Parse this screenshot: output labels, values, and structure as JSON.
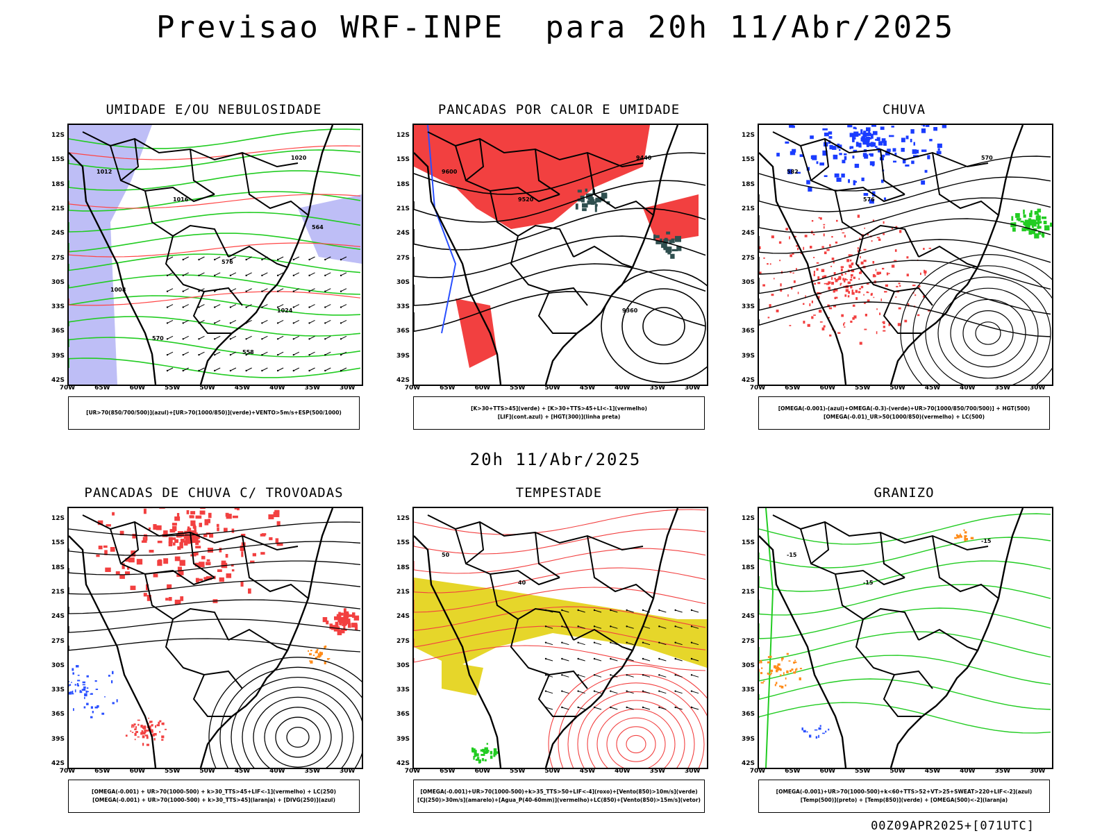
{
  "header": {
    "title": "Previsao WRF-INPE  para 20h 11/Abr/2025",
    "subtitle": "20h 11/Abr/2025",
    "run_info": "00Z09APR2025+[071UTC]"
  },
  "axes": {
    "lat_labels": [
      "12S",
      "15S",
      "18S",
      "21S",
      "24S",
      "27S",
      "30S",
      "33S",
      "36S",
      "39S",
      "42S"
    ],
    "lon_labels": [
      "70W",
      "65W",
      "60W",
      "55W",
      "50W",
      "45W",
      "40W",
      "35W",
      "30W"
    ]
  },
  "panels": [
    {
      "id": "umidade",
      "title": "UMIDADE E/OU NEBULOSIDADE",
      "legend": [
        "[UR>70(850/700/500)](azul)+[UR>70(1000/850)](verde)+VENTO>5m/s+ESP(500/1000)"
      ],
      "colors": {
        "fill": "#b3b3f5",
        "contour1": "#22cc22",
        "contour2": "#ff4444"
      },
      "contour_labels": [
        "1012",
        "1016",
        "1020",
        "1024",
        "1008",
        "576",
        "570",
        "564",
        "558"
      ]
    },
    {
      "id": "pancadas-calor",
      "title": "PANCADAS POR CALOR E UMIDADE",
      "legend": [
        "[K>30+TTS>45](verde) + [K>30+TTS>45+LI<-1](vermelho)",
        "[LIF](cont.azul) + [HGT(300)](linha preta)"
      ],
      "colors": {
        "fill": "#f24040",
        "fill2": "#2f4f4f",
        "contour1": "#2a50ff",
        "contour2": "#000000"
      },
      "contour_labels": [
        "9600",
        "9520",
        "9440",
        "9360"
      ]
    },
    {
      "id": "chuva",
      "title": "CHUVA",
      "legend": [
        "[OMEGA(-0.001)-(azul)+OMEGA(-0.3)-(verde)+UR>70(1000/850/700/500)] + HGT(500)",
        "[OMEGA(-0.01)_UR>50(1000/850)(vermelho) + LC(500)"
      ],
      "colors": {
        "fill": "#1a3cff",
        "fill2": "#22cc22",
        "scatter": "#f24040",
        "contour1": "#000000"
      },
      "contour_labels": [
        "582",
        "576",
        "570"
      ]
    },
    {
      "id": "pancadas-trovoadas",
      "title": "PANCADAS DE CHUVA C/ TROVOADAS",
      "legend": [
        "[OMEGA(-0.001) + UR>70(1000-500) + k>30_TTS>45+LIF<-1](vermelho) + LC(250)",
        "[OMEGA(-0.001) + UR>70(1000-500) + k>30_TTS>45](laranja) + [DIVG(250)](azul)"
      ],
      "colors": {
        "fill": "#f24040",
        "scatter": "#2a50ff",
        "orange": "#ff8c1a",
        "contour1": "#000000"
      },
      "contour_labels": []
    },
    {
      "id": "tempestade",
      "title": "TEMPESTADE",
      "legend": [
        "[OMEGA(-0.001)+UR>70(1000-500)+k>35_TTS>50+LIF<-4](roxo)+[Vento(850)>10m/s](verde)",
        "[CJ(250)>30m/s](amarelo)+[Agua_P(40-60mm)](vermelho)+LC(850)+[Vento(850)>15m/s](vetor)"
      ],
      "colors": {
        "fill": "#e6d62a",
        "contour1": "#f24040",
        "fill2": "#22cc22"
      },
      "contour_labels": [
        "50",
        "40"
      ]
    },
    {
      "id": "granizo",
      "title": "GRANIZO",
      "legend": [
        "[OMEGA(-0.001)+UR>70(1000-500)+k<60+TTS>52+VT>25+SWEAT>220+LIF<-2](azul)",
        "[Temp(500)](preto) + [Temp(850)](verde) + [OMEGA(500)<-2](laranja)"
      ],
      "colors": {
        "contour1": "#22cc22",
        "orange": "#ff8c1a",
        "scatter": "#2a50ff"
      },
      "contour_labels": [
        "-15",
        "-15",
        "-15"
      ]
    }
  ]
}
